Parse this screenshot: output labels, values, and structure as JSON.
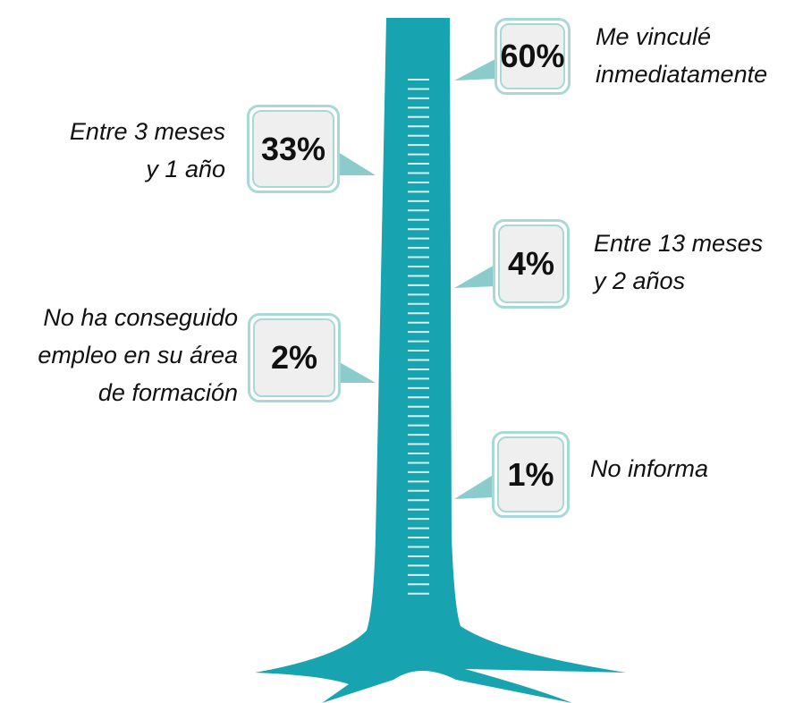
{
  "items": [
    {
      "value": "60%",
      "label_lines": [
        "Me vinculé",
        "inmediatamente"
      ]
    },
    {
      "value": "33%",
      "label_lines": [
        "Entre 3 meses",
        "y 1 año"
      ]
    },
    {
      "value": "4%",
      "label_lines": [
        "Entre 13 meses",
        "y 2 años"
      ]
    },
    {
      "value": "2%",
      "label_lines": [
        "No ha conseguido",
        "empleo en su área",
        "de formación"
      ]
    },
    {
      "value": "1%",
      "label_lines": [
        "No informa"
      ]
    }
  ]
}
